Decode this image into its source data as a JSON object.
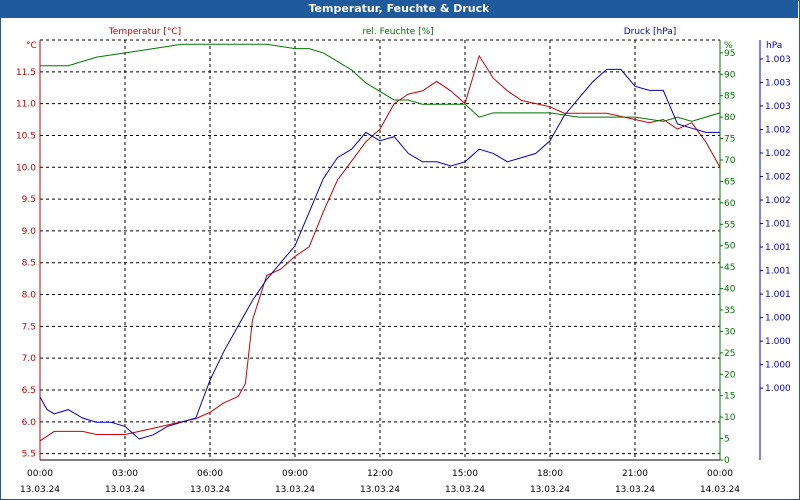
{
  "window": {
    "title": "Temperatur, Feuchte & Druck"
  },
  "colors": {
    "temperature": "#cc0000",
    "humidity": "#007700",
    "pressure": "#0000cc",
    "frame": "#1f5a9c",
    "grid": "#000000"
  },
  "chart_data": {
    "type": "line",
    "title": "Temperatur, Feuchte & Druck",
    "x_ticks": [
      {
        "time": "00:00",
        "date": "13.03.24"
      },
      {
        "time": "03:00",
        "date": "13.03.24"
      },
      {
        "time": "06:00",
        "date": "13.03.24"
      },
      {
        "time": "09:00",
        "date": "13.03.24"
      },
      {
        "time": "12:00",
        "date": "13.03.24"
      },
      {
        "time": "15:00",
        "date": "13.03.24"
      },
      {
        "time": "18:00",
        "date": "13.03.24"
      },
      {
        "time": "21:00",
        "date": "13.03.24"
      },
      {
        "time": "00:00",
        "date": "14.03.24"
      }
    ],
    "xlim": [
      0,
      24
    ],
    "axes": {
      "temperature": {
        "label": "Temperatur [°C]",
        "unit": "°C",
        "ylim": [
          5.4,
          12.0
        ],
        "ticks": [
          "5.5",
          "6.0",
          "6.5",
          "7.0",
          "7.5",
          "8.0",
          "8.5",
          "9.0",
          "9.5",
          "10.0",
          "10.5",
          "11.0",
          "11.5"
        ],
        "tick_values": [
          5.5,
          6.0,
          6.5,
          7.0,
          7.5,
          8.0,
          8.5,
          9.0,
          9.5,
          10.0,
          10.5,
          11.0,
          11.5
        ]
      },
      "humidity": {
        "label": "rel. Feuchte [%]",
        "unit": "%",
        "ylim": [
          0,
          98
        ],
        "ticks": [
          "0",
          "5",
          "10",
          "15",
          "20",
          "25",
          "30",
          "35",
          "40",
          "45",
          "50",
          "55",
          "60",
          "65",
          "70",
          "75",
          "80",
          "85",
          "90",
          "95"
        ],
        "tick_values": [
          0,
          5,
          10,
          15,
          20,
          25,
          30,
          35,
          40,
          45,
          50,
          55,
          60,
          65,
          70,
          75,
          80,
          85,
          90,
          95
        ]
      },
      "pressure": {
        "label": "Druck [hPa]",
        "unit": "hPa",
        "ylim": [
          0,
          1
        ],
        "ticks": [
          "1.003",
          "1.003",
          "1.003",
          "1.002",
          "1.002",
          "1.002",
          "1.002",
          "1.001",
          "1.001",
          "1.001",
          "1.001",
          "1.000",
          "1.000",
          "1.000",
          "1.000"
        ],
        "tick_fractions": [
          0.955,
          0.899,
          0.843,
          0.787,
          0.731,
          0.675,
          0.619,
          0.563,
          0.507,
          0.451,
          0.395,
          0.339,
          0.283,
          0.227,
          0.171
        ]
      }
    },
    "series": [
      {
        "name": "Temperatur [°C]",
        "axis": "temperature",
        "color": "#cc0000",
        "x": [
          0,
          0.5,
          1,
          1.5,
          2,
          2.5,
          3,
          3.5,
          4,
          4.5,
          5,
          5.5,
          6,
          6.5,
          7,
          7.25,
          7.5,
          8,
          8.5,
          9,
          9.5,
          10,
          10.5,
          11,
          11.5,
          12,
          12.5,
          13,
          13.5,
          14,
          14.5,
          15,
          15.5,
          16,
          16.5,
          17,
          17.5,
          18,
          18.5,
          19,
          19.5,
          20,
          20.5,
          21,
          21.5,
          22,
          22.5,
          23,
          23.5,
          24
        ],
        "values": [
          5.7,
          5.85,
          5.85,
          5.85,
          5.8,
          5.8,
          5.8,
          5.85,
          5.9,
          5.95,
          6.0,
          6.05,
          6.15,
          6.3,
          6.4,
          6.6,
          7.6,
          8.3,
          8.4,
          8.6,
          8.75,
          9.3,
          9.8,
          10.1,
          10.4,
          10.6,
          11.0,
          11.15,
          11.2,
          11.35,
          11.2,
          11.0,
          11.75,
          11.4,
          11.2,
          11.05,
          11.0,
          10.95,
          10.85,
          10.85,
          10.85,
          10.85,
          10.8,
          10.75,
          10.7,
          10.75,
          10.6,
          10.7,
          10.4,
          10.0
        ]
      },
      {
        "name": "rel. Feuchte [%]",
        "axis": "humidity",
        "color": "#007700",
        "x": [
          0,
          0.5,
          1,
          1.5,
          2,
          3,
          4,
          5,
          6,
          7,
          7.5,
          8,
          9,
          9.5,
          10,
          10.5,
          11,
          11.5,
          12,
          12.5,
          13,
          13.5,
          14,
          14.5,
          15,
          15.5,
          16,
          17,
          18,
          19,
          20,
          21,
          22,
          22.5,
          23,
          23.5,
          24
        ],
        "values": [
          92,
          92,
          92,
          93,
          94,
          95,
          96,
          97,
          97,
          97,
          97,
          97,
          96,
          96,
          95,
          93,
          91,
          88,
          86,
          84,
          84,
          83,
          83,
          83,
          83,
          80,
          81,
          81,
          81,
          80,
          80,
          80,
          79,
          80,
          79,
          80,
          81
        ]
      },
      {
        "name": "Druck [hPa]",
        "axis": "pressure",
        "color": "#0000cc",
        "x": [
          0,
          0.25,
          0.5,
          1,
          1.5,
          2,
          2.5,
          3,
          3.5,
          4,
          4.5,
          5,
          5.5,
          6,
          6.5,
          7,
          7.5,
          8,
          8.5,
          9,
          9.5,
          10,
          10.5,
          11,
          11.5,
          12,
          12.5,
          13,
          13.5,
          14,
          14.5,
          15,
          15.5,
          16,
          16.5,
          17,
          17.5,
          18,
          18.5,
          19,
          19.5,
          20,
          20.5,
          21,
          21.5,
          22,
          22.5,
          23,
          23.5,
          24
        ],
        "values": [
          0.15,
          0.12,
          0.11,
          0.12,
          0.1,
          0.09,
          0.09,
          0.08,
          0.05,
          0.06,
          0.08,
          0.09,
          0.1,
          0.19,
          0.26,
          0.32,
          0.38,
          0.43,
          0.47,
          0.51,
          0.59,
          0.67,
          0.72,
          0.74,
          0.78,
          0.76,
          0.77,
          0.73,
          0.71,
          0.71,
          0.7,
          0.71,
          0.74,
          0.73,
          0.71,
          0.72,
          0.73,
          0.76,
          0.82,
          0.86,
          0.9,
          0.93,
          0.93,
          0.89,
          0.88,
          0.88,
          0.8,
          0.79,
          0.78,
          0.78
        ]
      }
    ]
  }
}
